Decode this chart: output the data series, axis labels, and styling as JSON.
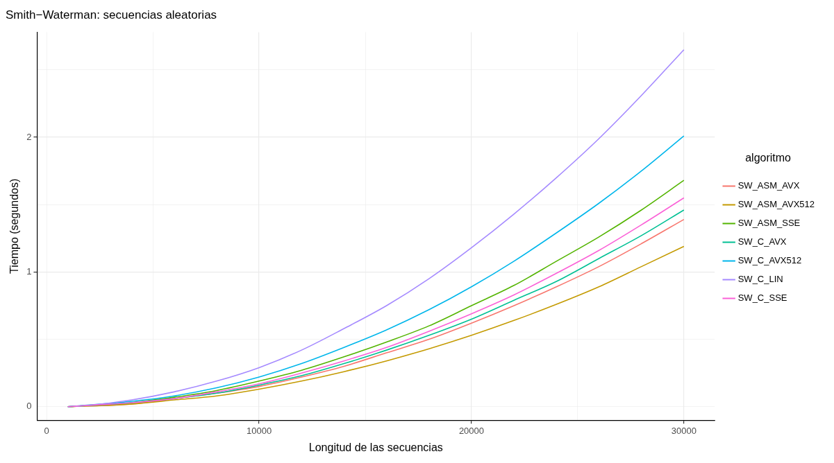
{
  "chart_data": {
    "type": "line",
    "title": "Smith−Waterman: secuencias aleatorias",
    "xlabel": "Longitud de las secuencias",
    "ylabel": "Tiempo (segundos)",
    "legend_title": "algoritmo",
    "legend": "right",
    "grid": true,
    "marker": "none",
    "line_style": "solid",
    "x": [
      1000,
      2000,
      4000,
      6000,
      8000,
      10000,
      12000,
      14000,
      16000,
      18000,
      20000,
      22000,
      24000,
      26000,
      28000,
      30000
    ],
    "xlim": [
      -450,
      31450
    ],
    "xticks": [
      0,
      {
        "value": 5000,
        "label": null
      },
      10000,
      {
        "value": 15000,
        "label": null
      },
      20000,
      {
        "value": 25000,
        "label": null
      },
      30000
    ],
    "ylim": [
      -0.1,
      2.78
    ],
    "yticks": [
      0,
      {
        "value": 0.5,
        "label": null
      },
      1,
      {
        "value": 1.5,
        "label": null
      },
      2,
      {
        "value": 2.5,
        "label": null
      }
    ],
    "series": [
      {
        "name": "SW_ASM_AVX",
        "color": "#f8766d",
        "values": [
          0.0,
          null,
          0.02,
          0.06,
          0.1,
          0.15,
          0.22,
          0.3,
          0.4,
          0.5,
          0.62,
          0.75,
          0.89,
          1.04,
          1.21,
          1.39
        ]
      },
      {
        "name": "SW_ASM_AVX512",
        "color": "#c49a00",
        "values": [
          0.0,
          null,
          0.02,
          0.05,
          0.08,
          0.13,
          0.19,
          0.26,
          0.34,
          0.43,
          0.53,
          0.64,
          0.76,
          0.89,
          1.04,
          1.19
        ]
      },
      {
        "name": "SW_ASM_SSE",
        "color": "#53b400",
        "values": [
          0.0,
          null,
          0.03,
          0.07,
          0.12,
          0.19,
          0.27,
          0.37,
          0.48,
          0.6,
          0.75,
          0.9,
          1.08,
          1.26,
          1.46,
          1.68
        ]
      },
      {
        "name": "SW_C_AVX",
        "color": "#00c094",
        "values": [
          0.0,
          null,
          0.03,
          0.06,
          0.1,
          0.16,
          0.23,
          0.32,
          0.42,
          0.53,
          0.65,
          0.79,
          0.93,
          1.1,
          1.27,
          1.46
        ]
      },
      {
        "name": "SW_C_AVX512",
        "color": "#00b6eb",
        "values": [
          0.0,
          null,
          0.04,
          0.08,
          0.14,
          0.22,
          0.32,
          0.44,
          0.57,
          0.72,
          0.89,
          1.08,
          1.29,
          1.51,
          1.75,
          2.01
        ]
      },
      {
        "name": "SW_C_LIN",
        "color": "#a58aff",
        "values": [
          0.0,
          0.01,
          0.05,
          0.11,
          0.19,
          0.29,
          0.42,
          0.58,
          0.75,
          0.95,
          1.18,
          1.43,
          1.7,
          1.99,
          2.31,
          2.65
        ]
      },
      {
        "name": "SW_C_SSE",
        "color": "#fb61d7",
        "values": [
          0.0,
          0.01,
          0.03,
          0.06,
          0.11,
          0.17,
          0.25,
          0.34,
          0.44,
          0.56,
          0.69,
          0.83,
          0.99,
          1.16,
          1.35,
          1.55
        ]
      }
    ]
  }
}
